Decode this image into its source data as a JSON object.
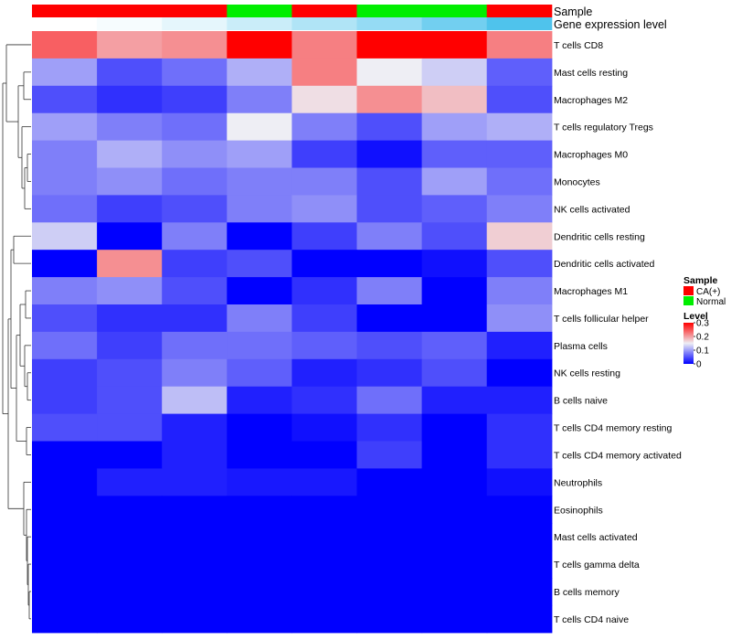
{
  "chart_data": {
    "type": "heatmap",
    "title": "",
    "annotation_labels": {
      "sample": "Sample",
      "expression": "Gene expression level"
    },
    "sample_groups": [
      "CA(+)",
      "CA(+)",
      "CA(+)",
      "Normal",
      "CA(+)",
      "Normal",
      "Normal",
      "CA(+)"
    ],
    "gene_expression_level": [
      0.0,
      0.05,
      0.15,
      0.3,
      0.45,
      0.6,
      0.8,
      1.0
    ],
    "rows": [
      "T cells CD8",
      "Mast cells resting",
      "Macrophages M2",
      "T cells regulatory  Tregs",
      "Macrophages M0",
      "Monocytes",
      "NK cells activated",
      "Dendritic cells resting",
      "Dendritic cells activated",
      "Macrophages M1",
      "T cells follicular helper",
      "Plasma cells",
      "NK cells resting",
      "B cells naive",
      "T cells CD4 memory resting",
      "T cells CD4 memory activated",
      "Neutrophils",
      "Eosinophils",
      "Mast cells activated",
      "T cells gamma delta",
      "B cells memory",
      "T cells CD4 naive"
    ],
    "values": [
      [
        0.24,
        0.2,
        0.21,
        0.3,
        0.22,
        0.3,
        0.3,
        0.22
      ],
      [
        0.1,
        0.05,
        0.07,
        0.11,
        0.22,
        0.15,
        0.13,
        0.06
      ],
      [
        0.05,
        0.03,
        0.04,
        0.08,
        0.16,
        0.21,
        0.18,
        0.05
      ],
      [
        0.1,
        0.08,
        0.07,
        0.15,
        0.08,
        0.05,
        0.1,
        0.11
      ],
      [
        0.08,
        0.11,
        0.09,
        0.1,
        0.04,
        0.01,
        0.06,
        0.06
      ],
      [
        0.08,
        0.09,
        0.07,
        0.08,
        0.08,
        0.05,
        0.1,
        0.07
      ],
      [
        0.07,
        0.04,
        0.05,
        0.08,
        0.09,
        0.05,
        0.06,
        0.08
      ],
      [
        0.13,
        0.0,
        0.08,
        0.0,
        0.04,
        0.08,
        0.05,
        0.17
      ],
      [
        0.0,
        0.21,
        0.04,
        0.05,
        0.0,
        0.0,
        0.01,
        0.05
      ],
      [
        0.08,
        0.09,
        0.05,
        0.0,
        0.03,
        0.08,
        0.0,
        0.08
      ],
      [
        0.05,
        0.03,
        0.03,
        0.08,
        0.04,
        0.0,
        0.0,
        0.09
      ],
      [
        0.07,
        0.04,
        0.07,
        0.07,
        0.06,
        0.05,
        0.06,
        0.02
      ],
      [
        0.04,
        0.05,
        0.08,
        0.06,
        0.02,
        0.03,
        0.05,
        0.0
      ],
      [
        0.04,
        0.05,
        0.12,
        0.02,
        0.03,
        0.07,
        0.02,
        0.02
      ],
      [
        0.05,
        0.05,
        0.02,
        0.0,
        0.01,
        0.03,
        0.0,
        0.03
      ],
      [
        0.0,
        0.0,
        0.02,
        0.0,
        0.0,
        0.04,
        0.0,
        0.03
      ],
      [
        0.0,
        0.02,
        0.02,
        0.015,
        0.015,
        0.0,
        0.0,
        0.01
      ],
      [
        0.0,
        0.0,
        0.0,
        0.0,
        0.0,
        0.0,
        0.0,
        0.0
      ],
      [
        0.0,
        0.0,
        0.0,
        0.0,
        0.0,
        0.0,
        0.0,
        0.0
      ],
      [
        0.0,
        0.0,
        0.0,
        0.0,
        0.0,
        0.0,
        0.0,
        0.0
      ],
      [
        0.0,
        0.0,
        0.0,
        0.0,
        0.0,
        0.0,
        0.0,
        0.0
      ],
      [
        0.0,
        0.0,
        0.0,
        0.0,
        0.0,
        0.0,
        0.0,
        0.0
      ]
    ],
    "color_scale": {
      "low": "#0000ff",
      "mid": "#eeeef4",
      "high": "#ff0000",
      "min": 0,
      "mid_value": 0.15,
      "max": 0.3
    },
    "legend": {
      "sample_title": "Sample",
      "sample_entries": [
        {
          "label": "CA(+)",
          "color": "#ff0000"
        },
        {
          "label": "Normal",
          "color": "#00ee00"
        }
      ],
      "level_title": "Level",
      "level_ticks": [
        "0.3",
        "0.2",
        "0.1",
        "0"
      ],
      "level_tick_values": [
        0.3,
        0.2,
        0.1,
        0
      ]
    },
    "sample_colors": {
      "CA(+)": "#ff0000",
      "Normal": "#00ee00"
    },
    "expression_colors": {
      "low": "#ffffff",
      "high": "#4fc3ec"
    }
  }
}
